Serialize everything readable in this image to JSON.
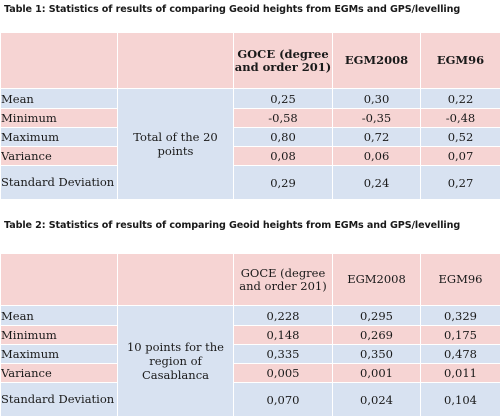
{
  "table1": {
    "caption": "Table 1: Statistics of results of comparing Geoid heights from EGMs and GPS/levelling",
    "headers": [
      "GOCE (degree and order 201)",
      "EGM2008",
      "EGM96"
    ],
    "group_label": "Total of the 20 points",
    "rows": [
      {
        "label": "Mean",
        "values": [
          "0,25",
          "0,30",
          "0,22"
        ]
      },
      {
        "label": "Minimum",
        "values": [
          "-0,58",
          "-0,35",
          "-0,48"
        ]
      },
      {
        "label": "Maximum",
        "values": [
          "0,80",
          "0,72",
          "0,52"
        ]
      },
      {
        "label": "Variance",
        "values": [
          "0,08",
          "0,06",
          "0,07"
        ]
      },
      {
        "label": "Standard Deviation",
        "values": [
          "0,29",
          "0,24",
          "0,27"
        ]
      }
    ]
  },
  "table2": {
    "caption": "Table 2: Statistics of results of comparing Geoid heights from EGMs and GPS/levelling",
    "headers": [
      "GOCE (degree and order 201)",
      "EGM2008",
      "EGM96"
    ],
    "group_label": "10 points for the region of Casablanca",
    "rows": [
      {
        "label": "Mean",
        "values": [
          "0,228",
          "0,295",
          "0,329"
        ]
      },
      {
        "label": "Minimum",
        "values": [
          "0,148",
          "0,269",
          "0,175"
        ]
      },
      {
        "label": "Maximum",
        "values": [
          "0,335",
          "0,350",
          "0,478"
        ]
      },
      {
        "label": "Variance",
        "values": [
          "0,005",
          "0,001",
          "0,011"
        ]
      },
      {
        "label": "Standard Deviation",
        "values": [
          "0,070",
          "0,024",
          "0,104"
        ]
      }
    ]
  }
}
